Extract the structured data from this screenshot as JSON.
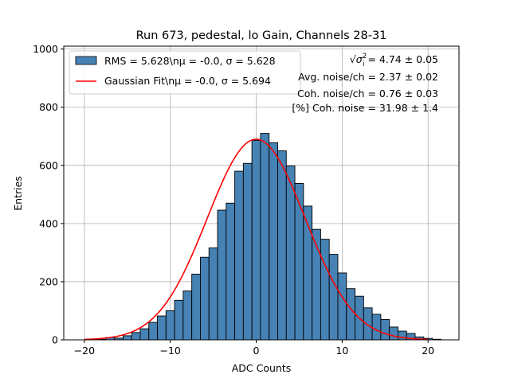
{
  "chart_data": {
    "type": "bar",
    "title": "Run 673, pedestal, lo Gain, Channels 28-31",
    "xlabel": "ADC Counts",
    "ylabel": "Entries",
    "xlim": [
      -22.4,
      23.6
    ],
    "ylim": [
      0,
      1010
    ],
    "xticks": [
      -20,
      -10,
      0,
      10,
      20
    ],
    "xtick_labels": [
      "−20",
      "−10",
      "0",
      "10",
      "20"
    ],
    "yticks": [
      0,
      200,
      400,
      600,
      800,
      1000
    ],
    "ytick_labels": [
      "0",
      "200",
      "400",
      "600",
      "800",
      "1000"
    ],
    "grid": true,
    "legend_position": "upper-left",
    "bins": {
      "edges_start": -18.5,
      "bin_width": 1,
      "counts": [
        2,
        8,
        6,
        14,
        25,
        38,
        60,
        82,
        100,
        136,
        168,
        226,
        284,
        316,
        446,
        470,
        580,
        607,
        686,
        710,
        678,
        650,
        598,
        538,
        460,
        380,
        346,
        294,
        230,
        176,
        150,
        110,
        88,
        70,
        44,
        30,
        22,
        10,
        5,
        2
      ],
      "color": "#4682b4",
      "edgecolor": "#000000"
    },
    "series": [
      {
        "name": "RMS = 5.628\\nμ = -0.0, σ = 5.628",
        "type": "histogram",
        "color": "#4682b4"
      },
      {
        "name": "Gaussian Fit\\nμ = -0.0, σ = 5.694",
        "type": "line",
        "color": "#ff0000",
        "mu": -0.0,
        "sigma": 5.694,
        "amplitude": 690,
        "x_range": [
          -20,
          20
        ]
      }
    ],
    "annotations": [
      {
        "prefix": "√",
        "symbol": "σ",
        "superscript": "2",
        "subscript": "i",
        "text": " = 4.74 ± 0.05"
      },
      {
        "text": "Avg. noise/ch = 2.37 ± 0.02"
      },
      {
        "text": "Coh. noise/ch = 0.76 ± 0.03"
      },
      {
        "text": "[%] Coh. noise = 31.98 ± 1.4"
      }
    ]
  }
}
